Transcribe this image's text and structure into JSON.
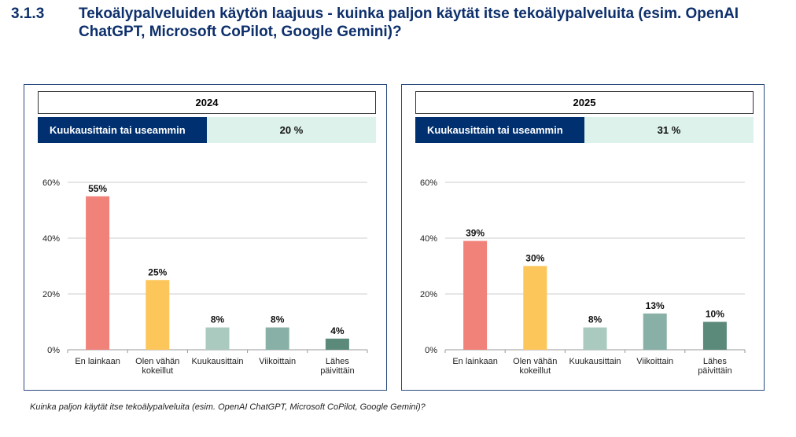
{
  "header": {
    "number": "3.1.3",
    "title": "Tekoälypalveluiden käytön laajuus - kuinka paljon käytät itse tekoälypalveluita (esim. OpenAI ChatGPT, Microsoft CoPilot, Google Gemini)?"
  },
  "footnote": "Kuinka paljon käytät itse tekoälypalveluita (esim. OpenAI ChatGPT, Microsoft CoPilot, Google Gemini)?",
  "colors": [
    "#f0827a",
    "#fdc65a",
    "#aac9bf",
    "#88b0a6",
    "#5b8a7a"
  ],
  "chart_data": [
    {
      "type": "bar",
      "title": "2024",
      "summary_label": "Kuukausittain tai useammin",
      "summary_value": "20 %",
      "categories": [
        [
          "En lainkaan"
        ],
        [
          "Olen vähän",
          "kokeillut"
        ],
        [
          "Kuukausittain"
        ],
        [
          "Viikoittain"
        ],
        [
          "Lähes",
          "päivittäin"
        ]
      ],
      "values": [
        55,
        25,
        8,
        8,
        4
      ],
      "labels": [
        "55%",
        "25%",
        "8%",
        "8%",
        "4%"
      ],
      "yticks": [
        "0%",
        "20%",
        "40%",
        "60%"
      ],
      "ylim": [
        0,
        60
      ],
      "grid": true
    },
    {
      "type": "bar",
      "title": "2025",
      "summary_label": "Kuukausittain tai useammin",
      "summary_value": "31 %",
      "categories": [
        [
          "En lainkaan"
        ],
        [
          "Olen vähän",
          "kokeillut"
        ],
        [
          "Kuukausittain"
        ],
        [
          "Viikoittain"
        ],
        [
          "Lähes",
          "päivittäin"
        ]
      ],
      "values": [
        39,
        30,
        8,
        13,
        10
      ],
      "labels": [
        "39%",
        "30%",
        "8%",
        "13%",
        "10%"
      ],
      "yticks": [
        "0%",
        "20%",
        "40%",
        "60%"
      ],
      "ylim": [
        0,
        60
      ],
      "grid": true
    }
  ]
}
